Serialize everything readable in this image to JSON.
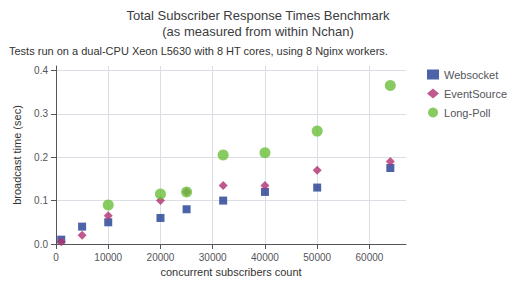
{
  "chart_data": {
    "type": "scatter",
    "title": "Total Subscriber Response Times Benchmark\n(as measured from within Nchan)",
    "subtitle": "Tests run on a dual-CPU Xeon L5630 with 8 HT cores, using 8 Nginx workers.",
    "xlabel": "concurrent subscribers count",
    "ylabel": "broadcast time (sec)",
    "xlim": [
      0,
      67000
    ],
    "ylim": [
      0,
      0.41
    ],
    "xticks": [
      0,
      10000,
      20000,
      30000,
      40000,
      50000,
      60000
    ],
    "yticks": [
      {
        "value": 0.0,
        "label": "0.0"
      },
      0.1,
      0.2,
      0.3,
      0.4
    ],
    "grid": true,
    "legend": "right",
    "series": [
      {
        "name": "Websocket",
        "color": "#1f3d91",
        "marker": "square",
        "x": [
          1000,
          5000,
          10000,
          20000,
          25000,
          32000,
          40000,
          50000,
          64000
        ],
        "values": [
          0.01,
          0.04,
          0.05,
          0.06,
          0.08,
          0.1,
          0.12,
          0.13,
          0.175
        ]
      },
      {
        "name": "EventSource",
        "color": "#b03070",
        "marker": "diamond",
        "x": [
          1000,
          5000,
          10000,
          20000,
          25000,
          32000,
          40000,
          50000,
          64000
        ],
        "values": [
          0.005,
          0.02,
          0.065,
          0.1,
          0.12,
          0.135,
          0.135,
          0.17,
          0.19
        ]
      },
      {
        "name": "Long-Poll",
        "color": "#6abf3a",
        "marker": "circle",
        "x": [
          10000,
          20000,
          25000,
          32000,
          40000,
          50000,
          64000
        ],
        "values": [
          0.09,
          0.115,
          0.12,
          0.205,
          0.21,
          0.26,
          0.365
        ]
      }
    ]
  }
}
